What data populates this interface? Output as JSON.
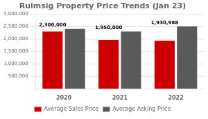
{
  "chart_data": {
    "type": "bar",
    "title": "Ruimsig Property Price Trends (Jan 23)",
    "categories": [
      "2020",
      "2021",
      "2022"
    ],
    "series": [
      {
        "name": "Average Sales Price",
        "color": "#cc0000",
        "values": [
          2300000,
          1950000,
          1930988
        ],
        "data_labels": true,
        "value_labels": [
          "2,300,000",
          "1,950,000",
          "1,930,988"
        ]
      },
      {
        "name": "Average Asking Price",
        "color": "#5a5a5a",
        "values": [
          2400000,
          2300000,
          2500000
        ]
      }
    ],
    "ylim": [
      0,
      3000000
    ],
    "yticks": [
      {
        "value": 500000,
        "label": "500,000"
      },
      {
        "value": 1000000,
        "label": "1,000,000"
      },
      {
        "value": 1500000,
        "label": "1,500,000"
      },
      {
        "value": 2000000,
        "label": "2,000,000"
      },
      {
        "value": 2500000,
        "label": "2,500,000"
      },
      {
        "value": 3000000,
        "label": "3,000,000"
      }
    ],
    "grid": true,
    "legend": "bottom"
  }
}
